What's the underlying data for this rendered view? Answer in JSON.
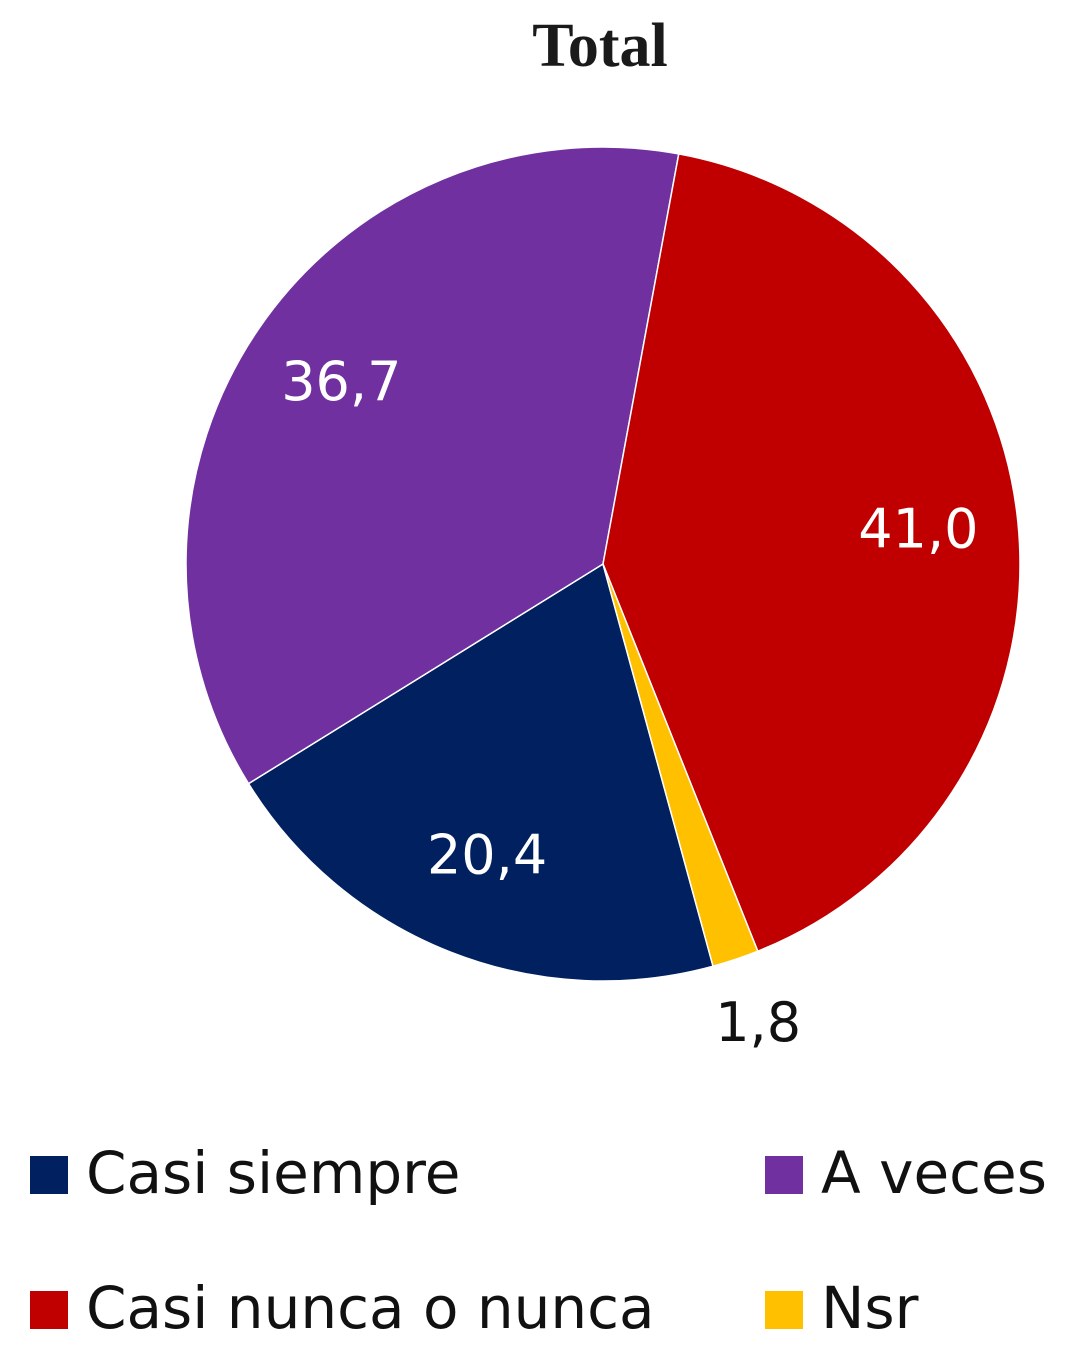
{
  "chart_data": {
    "type": "pie",
    "title": "Total",
    "series": [
      {
        "name": "Casi siempre",
        "color": "#002060",
        "values": [
          20.4
        ],
        "value_labels": [
          "20,4"
        ]
      },
      {
        "name": "A veces",
        "color": "#7030a0",
        "values": [
          36.7
        ],
        "value_labels": [
          "36,7"
        ]
      },
      {
        "name": "Casi nunca o nunca",
        "color": "#c00000",
        "values": [
          41.0
        ],
        "value_labels": [
          "41,0"
        ]
      },
      {
        "name": "Nsr",
        "color": "#ffc000",
        "values": [
          1.8
        ],
        "value_labels": [
          "1,8"
        ]
      }
    ],
    "legend": "bottom"
  }
}
